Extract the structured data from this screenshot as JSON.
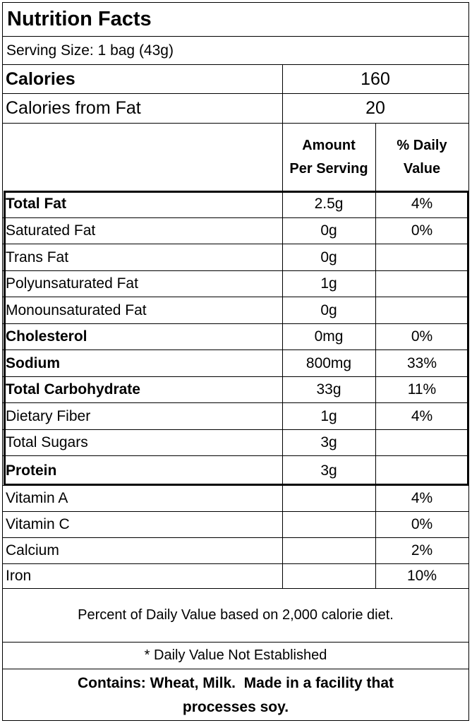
{
  "title": "Nutrition Facts",
  "serving_size": "Serving Size: 1 bag (43g)",
  "calories": {
    "label": "Calories",
    "value": "160"
  },
  "calories_from_fat": {
    "label": "Calories from Fat",
    "value": "20"
  },
  "header": {
    "amount_line1": "Amount",
    "amount_line2": "Per Serving",
    "dv_line1": "% Daily",
    "dv_line2": "Value"
  },
  "nutrients": [
    {
      "name": "Total Fat",
      "amount": "2.5g",
      "dv": "4%",
      "bold": true
    },
    {
      "name": "Saturated Fat",
      "amount": "0g",
      "dv": "0%",
      "bold": false
    },
    {
      "name": "Trans Fat",
      "amount": "0g",
      "dv": "",
      "bold": false
    },
    {
      "name": "Polyunsaturated Fat",
      "amount": "1g",
      "dv": "",
      "bold": false
    },
    {
      "name": "Monounsaturated Fat",
      "amount": "0g",
      "dv": "",
      "bold": false
    },
    {
      "name": "Cholesterol",
      "amount": "0mg",
      "dv": "0%",
      "bold": true
    },
    {
      "name": "Sodium",
      "amount": "800mg",
      "dv": "33%",
      "bold": true
    },
    {
      "name": "Total Carbohydrate",
      "amount": "33g",
      "dv": "11%",
      "bold": true
    },
    {
      "name": "Dietary Fiber",
      "amount": "1g",
      "dv": "4%",
      "bold": false
    },
    {
      "name": "Total Sugars",
      "amount": "3g",
      "dv": "",
      "bold": false
    },
    {
      "name": "Protein",
      "amount": "3g",
      "dv": "",
      "bold": true
    }
  ],
  "vitamins": [
    {
      "name": "Vitamin A",
      "amount": "",
      "dv": "4%"
    },
    {
      "name": "Vitamin C",
      "amount": "",
      "dv": "0%"
    },
    {
      "name": "Calcium",
      "amount": "",
      "dv": "2%"
    },
    {
      "name": "Iron",
      "amount": "",
      "dv": "10%"
    }
  ],
  "footnote": "Percent of Daily Value based on 2,000 calorie diet.",
  "not_established": "* Daily Value Not Established",
  "contains_line1": "Contains: Wheat, Milk.  Made in a facility that",
  "contains_line2": "processes soy."
}
